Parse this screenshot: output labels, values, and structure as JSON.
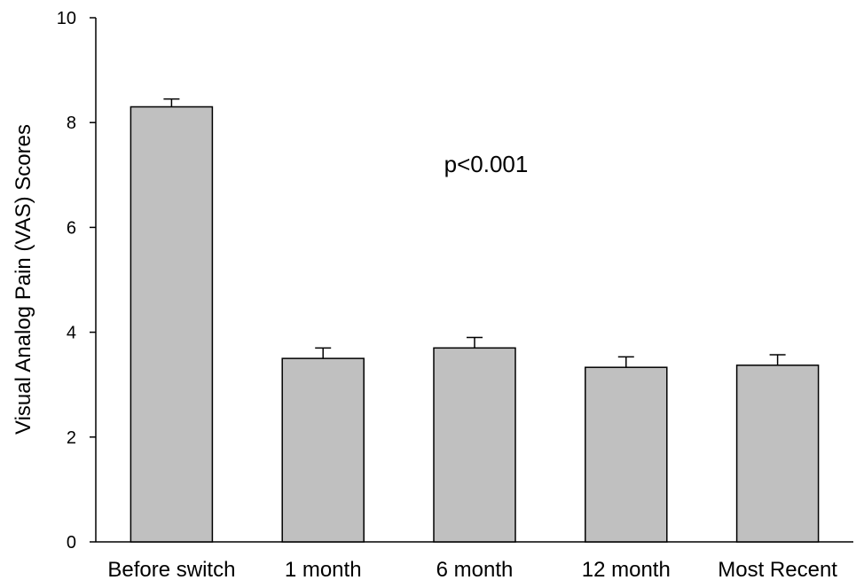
{
  "chart_data": {
    "type": "bar",
    "categories": [
      "Before switch",
      "1 month",
      "6 month",
      "12 month",
      "Most Recent"
    ],
    "values": [
      8.3,
      3.5,
      3.7,
      3.33,
      3.37
    ],
    "error_upper": [
      0.15,
      0.2,
      0.2,
      0.2,
      0.2
    ],
    "title": "",
    "xlabel": "",
    "ylabel": "Visual Analog Pain (VAS) Scores",
    "ylim": [
      0,
      10
    ],
    "yticks": [
      0,
      2,
      4,
      6,
      8,
      10
    ],
    "grid": false,
    "annotation": "p<0.001",
    "colors": {
      "bar_fill": "#c0c0c0",
      "bar_stroke": "#000000",
      "axis": "#000000"
    }
  }
}
